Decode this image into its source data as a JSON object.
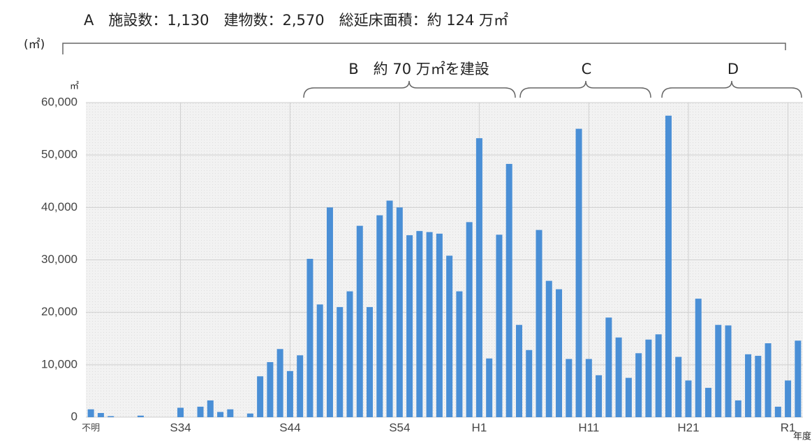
{
  "chart_data": {
    "type": "bar",
    "title": "A　施設数：1,130　建物数：2,570　総延床面積：約 124 万㎡",
    "y_unit_top": "(㎡)",
    "y_unit": "㎡",
    "x_unit": "年度",
    "annotations": [
      "B　約 70 万㎡を建設",
      "C",
      "D"
    ],
    "categories": [
      "不明",
      null,
      null,
      null,
      null,
      null,
      null,
      null,
      null,
      "S34",
      null,
      null,
      null,
      null,
      null,
      null,
      null,
      null,
      null,
      null,
      "S44",
      null,
      null,
      null,
      null,
      null,
      null,
      null,
      null,
      null,
      null,
      "S54",
      null,
      null,
      null,
      null,
      null,
      null,
      null,
      "H1",
      null,
      null,
      null,
      null,
      null,
      null,
      null,
      null,
      null,
      null,
      "H11",
      null,
      null,
      null,
      null,
      null,
      null,
      null,
      null,
      null,
      "H21",
      null,
      null,
      null,
      null,
      null,
      null,
      null,
      null,
      null,
      "R1",
      null
    ],
    "values": [
      1500,
      800,
      200,
      0,
      0,
      300,
      0,
      0,
      0,
      1800,
      0,
      2000,
      3200,
      1000,
      1500,
      0,
      700,
      7800,
      10500,
      13000,
      8800,
      11800,
      30200,
      21500,
      40000,
      21000,
      24000,
      36500,
      21000,
      38500,
      41300,
      40000,
      34700,
      35500,
      35300,
      35000,
      30800,
      24000,
      37200,
      53200,
      11200,
      34800,
      48300,
      17600,
      12800,
      35700,
      26000,
      24400,
      11100,
      55000,
      11100,
      8000,
      19000,
      15200,
      7500,
      12200,
      14800,
      15800,
      57500,
      11500,
      7000,
      22600,
      5600,
      17600,
      17500,
      3200,
      12000,
      11700,
      14100,
      2000,
      7000,
      14600
    ],
    "color": "#4a8fd6",
    "ylim": [
      0,
      60000
    ],
    "yticks": [
      0,
      {
        "value": 10000,
        "label": "10,000"
      },
      {
        "value": 20000,
        "label": "20,000"
      },
      {
        "value": 30000,
        "label": "30,000"
      },
      {
        "value": 40000,
        "label": "40,000"
      },
      {
        "value": 50000,
        "label": "50,000"
      },
      {
        "value": 60000,
        "label": "60,000"
      }
    ],
    "grid": true
  }
}
